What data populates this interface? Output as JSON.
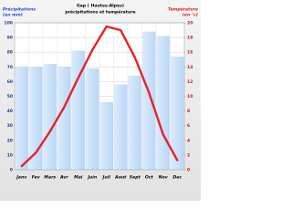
{
  "chart_data": {
    "type": "bar",
    "title": "Gap ( Hautes-Alpes)",
    "subtitle": "précipitations et température",
    "y_label": [
      "Précipitations",
      "(en mm)"
    ],
    "y2_label": [
      "Température",
      "(en °c)"
    ],
    "categories": [
      "Janv",
      "Fev",
      "Mars",
      "Avr",
      "Mai",
      "Juin",
      "Juil",
      "Aout",
      "Sept",
      "Oct",
      "Nov",
      "Dec"
    ],
    "series": [
      {
        "type": "bar",
        "color": "#b9d7f7",
        "values": [
          70,
          70,
          72,
          70,
          81,
          69,
          46,
          58,
          64,
          94,
          91,
          77
        ]
      },
      {
        "type": "line",
        "axis": "y2",
        "color": "#e8202a",
        "values": [
          0.5,
          2.3,
          5.2,
          8.5,
          12.5,
          16.3,
          19.5,
          19,
          15.3,
          10.5,
          4.8,
          1.3
        ]
      }
    ],
    "ylim": [
      0,
      100
    ],
    "yticks": [
      0,
      10,
      20,
      30,
      40,
      50,
      60,
      70,
      80,
      90,
      100
    ],
    "y2lim": [
      0,
      20
    ],
    "y2ticks": [
      0,
      2,
      4,
      6,
      8,
      10,
      12,
      14,
      16,
      18,
      20
    ],
    "grid": true
  }
}
